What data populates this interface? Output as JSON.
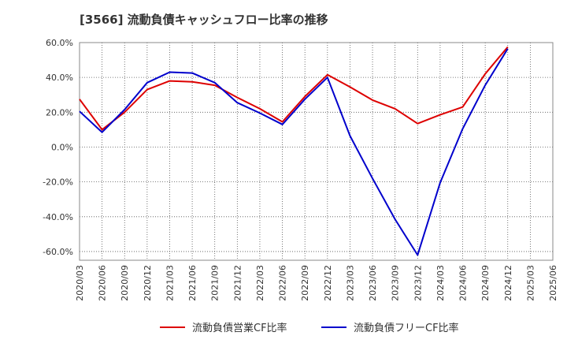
{
  "chart_data": {
    "type": "line",
    "title": "[3566]  流動負債キャッシュフロー比率の推移",
    "x": [
      "2020/03",
      "2020/06",
      "2020/09",
      "2020/12",
      "2021/03",
      "2021/06",
      "2021/09",
      "2021/12",
      "2022/03",
      "2022/06",
      "2022/09",
      "2022/12",
      "2023/03",
      "2023/06",
      "2023/09",
      "2023/12",
      "2024/03",
      "2024/06",
      "2024/09",
      "2024/12",
      "2025/03",
      "2025/06"
    ],
    "ylim": [
      -65,
      60
    ],
    "yticks": [
      60,
      40,
      20,
      0,
      -20,
      -40,
      -60
    ],
    "ytick_labels": [
      "60.0%",
      "40.0%",
      "20.0%",
      "0.0%",
      "-20.0%",
      "-40.0%",
      "-60.0%"
    ],
    "grid": true,
    "legend_position": "bottom",
    "series": [
      {
        "name": "流動負債営業CF比率",
        "color": "#dd0000",
        "values": [
          27.5,
          10.0,
          20.0,
          33.0,
          38.0,
          37.5,
          35.5,
          28.5,
          22.0,
          14.5,
          29.0,
          41.5,
          34.5,
          27.0,
          22.0,
          13.5,
          18.5,
          23.0,
          42.0,
          57.5,
          null,
          null
        ]
      },
      {
        "name": "流動負債フリーCF比率",
        "color": "#0000cc",
        "values": [
          20.5,
          8.5,
          21.5,
          37.0,
          43.0,
          42.5,
          37.0,
          25.5,
          19.5,
          13.0,
          27.5,
          40.0,
          6.5,
          -18.0,
          -41.5,
          -62.0,
          -20.5,
          10.5,
          35.5,
          56.5,
          null,
          null
        ]
      }
    ]
  }
}
